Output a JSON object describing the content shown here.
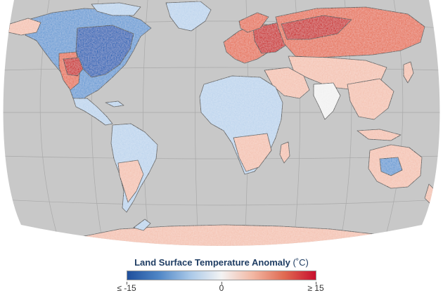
{
  "map": {
    "colors": {
      "ocean": "#c8c8c8",
      "border": "#3a3a3a",
      "graticule": "#a9a9a9",
      "cold_strong": "#2b66b8",
      "cold": "#6d9fd6",
      "cold_light": "#bfd6ee",
      "neutral": "#f2f2f2",
      "warm_light": "#f4c4b4",
      "warm": "#e7775f",
      "warm_strong": "#cc2a2a"
    }
  },
  "legend": {
    "title": "Land Surface Temperature Anomaly",
    "unit": "(˚C)",
    "min_label": "≤ -15",
    "mid_label": "0",
    "max_label": "≥ 15",
    "gradient": [
      "#1f4f9c",
      "#4f86c6",
      "#a9c8e8",
      "#f3f3f3",
      "#f2b7a3",
      "#e06a52",
      "#c8102e"
    ]
  }
}
